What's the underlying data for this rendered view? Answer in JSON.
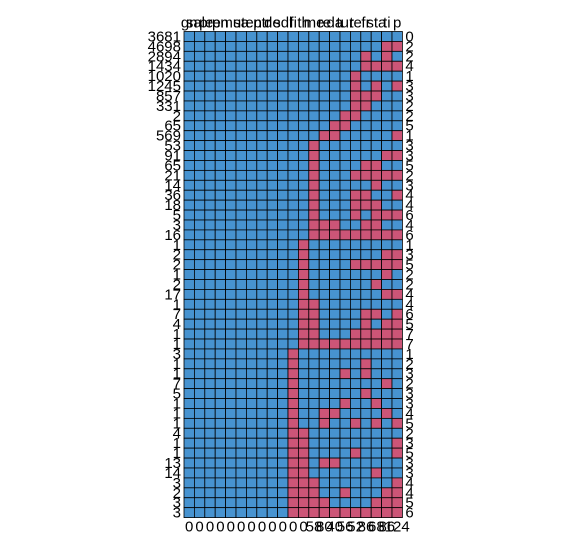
{
  "chart_data": {
    "type": "heatmap",
    "title": "",
    "xlabel": "",
    "ylabel": "",
    "colors": {
      "present": "#CC5577",
      "absent": "#4793D0",
      "border": "#000000"
    },
    "top_labels": [
      "gn",
      "sale",
      "pre",
      "pn",
      "mu",
      "sa",
      "ten",
      "ptr",
      "de",
      "sdl",
      "fi",
      "th",
      "me",
      "re",
      "da",
      "tur",
      "te",
      "fr",
      "sta",
      "ti",
      "p"
    ],
    "bottom_labels": [
      "0",
      "0",
      "0",
      "0",
      "0",
      "0",
      "0",
      "0",
      "0",
      "0",
      "0",
      "0",
      "58",
      "80",
      "40",
      "56",
      "52",
      "86",
      "68",
      "86",
      "124"
    ],
    "right_labels": [
      "0",
      "2",
      "2",
      "4",
      "1",
      "3",
      "3",
      "2",
      "2",
      "5",
      "1",
      "3",
      "3",
      "5",
      "2",
      "3",
      "4",
      "4",
      "6",
      "4",
      "6",
      "1",
      "3",
      "5",
      "2",
      "2",
      "4",
      "4",
      "6",
      "5",
      "7",
      "7",
      "1",
      "2",
      "3",
      "2",
      "3",
      "3",
      "4",
      "5",
      "2",
      "3",
      "5",
      "3",
      "3",
      "4",
      "4",
      "5",
      "6"
    ],
    "row_counts": [
      "3681",
      "4698",
      "2894",
      "1434",
      "1020",
      "1245",
      "857",
      "331",
      "2",
      "65",
      "569",
      "53",
      "91",
      "65",
      "21",
      "14",
      "36",
      "18",
      "5",
      "3",
      "16",
      "1",
      "2",
      "2",
      "1",
      "2",
      "17",
      "1",
      "7",
      "4",
      "1",
      "1",
      "3",
      "1",
      "1",
      "7",
      "5",
      "1",
      "1",
      "1",
      "4",
      "1",
      "1",
      "13",
      "14",
      "3",
      "2",
      "3",
      "3"
    ],
    "rows": [
      [
        0,
        0,
        0,
        0,
        0,
        0,
        0,
        0,
        0,
        0,
        0,
        0,
        0,
        0,
        0,
        0,
        0,
        0,
        0,
        0,
        0
      ],
      [
        0,
        0,
        0,
        0,
        0,
        0,
        0,
        0,
        0,
        0,
        0,
        0,
        0,
        0,
        0,
        0,
        0,
        0,
        0,
        1,
        1
      ],
      [
        0,
        0,
        0,
        0,
        0,
        0,
        0,
        0,
        0,
        0,
        0,
        0,
        0,
        0,
        0,
        0,
        0,
        1,
        0,
        1,
        0
      ],
      [
        0,
        0,
        0,
        0,
        0,
        0,
        0,
        0,
        0,
        0,
        0,
        0,
        0,
        0,
        0,
        0,
        0,
        1,
        1,
        1,
        1
      ],
      [
        0,
        0,
        0,
        0,
        0,
        0,
        0,
        0,
        0,
        0,
        0,
        0,
        0,
        0,
        0,
        0,
        1,
        0,
        0,
        0,
        0
      ],
      [
        0,
        0,
        0,
        0,
        0,
        0,
        0,
        0,
        0,
        0,
        0,
        0,
        0,
        0,
        0,
        0,
        1,
        0,
        1,
        0,
        1
      ],
      [
        0,
        0,
        0,
        0,
        0,
        0,
        0,
        0,
        0,
        0,
        0,
        0,
        0,
        0,
        0,
        0,
        1,
        1,
        1,
        0,
        0
      ],
      [
        0,
        0,
        0,
        0,
        0,
        0,
        0,
        0,
        0,
        0,
        0,
        0,
        0,
        0,
        0,
        0,
        1,
        1,
        0,
        0,
        0
      ],
      [
        0,
        0,
        0,
        0,
        0,
        0,
        0,
        0,
        0,
        0,
        0,
        0,
        0,
        0,
        0,
        1,
        1,
        0,
        0,
        0,
        0
      ],
      [
        0,
        0,
        0,
        0,
        0,
        0,
        0,
        0,
        0,
        0,
        0,
        0,
        0,
        0,
        1,
        1,
        0,
        0,
        0,
        0,
        0
      ],
      [
        0,
        0,
        0,
        0,
        0,
        0,
        0,
        0,
        0,
        0,
        0,
        0,
        0,
        1,
        1,
        0,
        0,
        0,
        0,
        0,
        1
      ],
      [
        0,
        0,
        0,
        0,
        0,
        0,
        0,
        0,
        0,
        0,
        0,
        0,
        1,
        0,
        0,
        0,
        0,
        0,
        0,
        0,
        0
      ],
      [
        0,
        0,
        0,
        0,
        0,
        0,
        0,
        0,
        0,
        0,
        0,
        0,
        1,
        0,
        0,
        0,
        0,
        0,
        0,
        1,
        1
      ],
      [
        0,
        0,
        0,
        0,
        0,
        0,
        0,
        0,
        0,
        0,
        0,
        0,
        1,
        0,
        0,
        0,
        0,
        1,
        1,
        0,
        0
      ],
      [
        0,
        0,
        0,
        0,
        0,
        0,
        0,
        0,
        0,
        0,
        0,
        0,
        1,
        0,
        0,
        0,
        1,
        1,
        1,
        1,
        1
      ],
      [
        0,
        0,
        0,
        0,
        0,
        0,
        0,
        0,
        0,
        0,
        0,
        0,
        1,
        0,
        0,
        0,
        0,
        0,
        1,
        0,
        0
      ],
      [
        0,
        0,
        0,
        0,
        0,
        0,
        0,
        0,
        0,
        0,
        0,
        0,
        1,
        0,
        0,
        0,
        1,
        1,
        0,
        0,
        1
      ],
      [
        0,
        0,
        0,
        0,
        0,
        0,
        0,
        0,
        0,
        0,
        0,
        0,
        1,
        0,
        0,
        0,
        1,
        1,
        1,
        0,
        0
      ],
      [
        0,
        0,
        0,
        0,
        0,
        0,
        0,
        0,
        0,
        0,
        0,
        0,
        1,
        0,
        0,
        0,
        1,
        0,
        1,
        1,
        1
      ],
      [
        0,
        0,
        0,
        0,
        0,
        0,
        0,
        0,
        0,
        0,
        0,
        0,
        1,
        1,
        1,
        0,
        0,
        1,
        1,
        0,
        0
      ],
      [
        0,
        0,
        0,
        0,
        0,
        0,
        0,
        0,
        0,
        0,
        0,
        0,
        1,
        1,
        1,
        1,
        1,
        1,
        1,
        1,
        1
      ],
      [
        0,
        0,
        0,
        0,
        0,
        0,
        0,
        0,
        0,
        0,
        0,
        1,
        0,
        0,
        0,
        0,
        0,
        0,
        0,
        0,
        0
      ],
      [
        0,
        0,
        0,
        0,
        0,
        0,
        0,
        0,
        0,
        0,
        0,
        1,
        0,
        0,
        0,
        0,
        0,
        0,
        0,
        1,
        1
      ],
      [
        0,
        0,
        0,
        0,
        0,
        0,
        0,
        0,
        0,
        0,
        0,
        1,
        0,
        0,
        0,
        0,
        1,
        1,
        1,
        1,
        1
      ],
      [
        0,
        0,
        0,
        0,
        0,
        0,
        0,
        0,
        0,
        0,
        0,
        1,
        0,
        0,
        0,
        0,
        0,
        0,
        0,
        1,
        0
      ],
      [
        0,
        0,
        0,
        0,
        0,
        0,
        0,
        0,
        0,
        0,
        0,
        1,
        0,
        0,
        0,
        0,
        0,
        0,
        1,
        0,
        0
      ],
      [
        0,
        0,
        0,
        0,
        0,
        0,
        0,
        0,
        0,
        0,
        0,
        1,
        0,
        0,
        0,
        0,
        0,
        0,
        0,
        1,
        1
      ],
      [
        0,
        0,
        0,
        0,
        0,
        0,
        0,
        0,
        0,
        0,
        0,
        1,
        1,
        0,
        0,
        0,
        0,
        0,
        0,
        0,
        0
      ],
      [
        0,
        0,
        0,
        0,
        0,
        0,
        0,
        0,
        0,
        0,
        0,
        1,
        1,
        0,
        0,
        0,
        0,
        1,
        1,
        0,
        1
      ],
      [
        0,
        0,
        0,
        0,
        0,
        0,
        0,
        0,
        0,
        0,
        0,
        1,
        1,
        0,
        0,
        0,
        0,
        1,
        0,
        1,
        1
      ],
      [
        0,
        0,
        0,
        0,
        0,
        0,
        0,
        0,
        0,
        0,
        0,
        1,
        1,
        0,
        0,
        0,
        1,
        1,
        1,
        1,
        1
      ],
      [
        0,
        0,
        0,
        0,
        0,
        0,
        0,
        0,
        0,
        0,
        0,
        1,
        1,
        1,
        1,
        1,
        1,
        1,
        1,
        1,
        1
      ],
      [
        0,
        0,
        0,
        0,
        0,
        0,
        0,
        0,
        0,
        0,
        1,
        0,
        0,
        0,
        0,
        0,
        0,
        0,
        0,
        0,
        0
      ],
      [
        0,
        0,
        0,
        0,
        0,
        0,
        0,
        0,
        0,
        0,
        1,
        0,
        0,
        0,
        0,
        0,
        0,
        1,
        0,
        0,
        0
      ],
      [
        0,
        0,
        0,
        0,
        0,
        0,
        0,
        0,
        0,
        0,
        1,
        0,
        0,
        0,
        0,
        1,
        0,
        1,
        0,
        0,
        0
      ],
      [
        0,
        0,
        0,
        0,
        0,
        0,
        0,
        0,
        0,
        0,
        1,
        0,
        0,
        0,
        0,
        0,
        0,
        0,
        0,
        1,
        0
      ],
      [
        0,
        0,
        0,
        0,
        0,
        0,
        0,
        0,
        0,
        0,
        1,
        0,
        0,
        0,
        0,
        0,
        0,
        1,
        0,
        0,
        0
      ],
      [
        0,
        0,
        0,
        0,
        0,
        0,
        0,
        0,
        0,
        0,
        1,
        0,
        0,
        0,
        0,
        1,
        0,
        0,
        1,
        0,
        0
      ],
      [
        0,
        0,
        0,
        0,
        0,
        0,
        0,
        0,
        0,
        0,
        1,
        0,
        0,
        1,
        1,
        0,
        0,
        0,
        0,
        1,
        0
      ],
      [
        0,
        0,
        0,
        0,
        0,
        0,
        0,
        0,
        0,
        0,
        1,
        0,
        0,
        1,
        0,
        0,
        1,
        0,
        1,
        0,
        1
      ],
      [
        0,
        0,
        0,
        0,
        0,
        0,
        0,
        0,
        0,
        0,
        1,
        1,
        0,
        0,
        0,
        0,
        0,
        0,
        0,
        0,
        0
      ],
      [
        0,
        0,
        0,
        0,
        0,
        0,
        0,
        0,
        0,
        0,
        1,
        1,
        0,
        0,
        0,
        0,
        0,
        0,
        0,
        0,
        1
      ],
      [
        0,
        0,
        0,
        0,
        0,
        0,
        0,
        0,
        0,
        0,
        1,
        1,
        0,
        0,
        0,
        0,
        1,
        0,
        0,
        0,
        1
      ],
      [
        0,
        0,
        0,
        0,
        0,
        0,
        0,
        0,
        0,
        0,
        1,
        1,
        0,
        1,
        1,
        0,
        0,
        0,
        0,
        0,
        0
      ],
      [
        0,
        0,
        0,
        0,
        0,
        0,
        0,
        0,
        0,
        0,
        1,
        1,
        0,
        0,
        0,
        0,
        0,
        0,
        1,
        0,
        0
      ],
      [
        0,
        0,
        0,
        0,
        0,
        0,
        0,
        0,
        0,
        0,
        1,
        1,
        1,
        0,
        0,
        0,
        0,
        0,
        0,
        0,
        1
      ],
      [
        0,
        0,
        0,
        0,
        0,
        0,
        0,
        0,
        0,
        0,
        1,
        1,
        1,
        0,
        0,
        1,
        0,
        0,
        0,
        1,
        1
      ],
      [
        0,
        0,
        0,
        0,
        0,
        0,
        0,
        0,
        0,
        0,
        1,
        1,
        1,
        1,
        0,
        0,
        0,
        0,
        1,
        1,
        1
      ],
      [
        0,
        0,
        0,
        0,
        0,
        0,
        0,
        0,
        0,
        0,
        1,
        1,
        1,
        1,
        1,
        1,
        1,
        1,
        1,
        1,
        1
      ]
    ]
  }
}
